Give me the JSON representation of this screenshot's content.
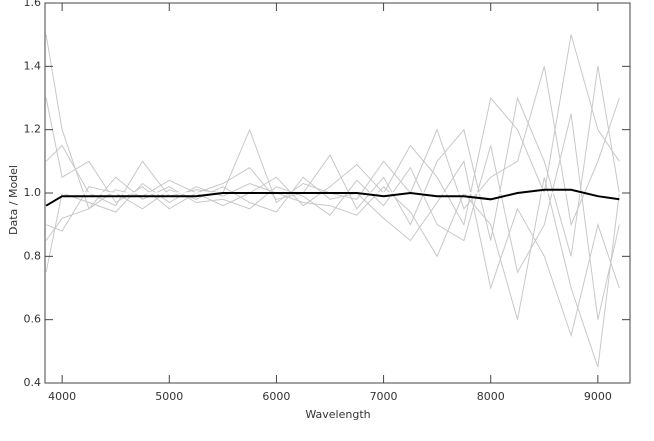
{
  "chart_data": {
    "type": "line",
    "xlabel": "Wavelength",
    "ylabel": "Data / Model",
    "x": [
      3850,
      4000,
      4250,
      4500,
      4750,
      5000,
      5250,
      5500,
      5750,
      6000,
      6250,
      6500,
      6750,
      7000,
      7250,
      7500,
      7750,
      8000,
      8250,
      8500,
      8750,
      9000,
      9200
    ],
    "series": [
      {
        "color": "#c8c8c8",
        "values": [
          1.3,
          1.05,
          1.1,
          0.97,
          1.02,
          0.95,
          1.0,
          1.03,
          1.08,
          0.98,
          1.0,
          1.12,
          0.95,
          1.05,
          0.9,
          1.1,
          1.2,
          0.85,
          1.3,
          1.1,
          0.8,
          1.4,
          1.0
        ]
      },
      {
        "color": "#c8c8c8",
        "values": [
          0.85,
          0.92,
          0.95,
          1.05,
          0.98,
          1.02,
          0.97,
          0.98,
          0.95,
          1.02,
          0.99,
          0.93,
          1.04,
          0.96,
          1.08,
          0.9,
          0.85,
          1.15,
          0.75,
          0.9,
          1.25,
          0.6,
          0.9
        ]
      },
      {
        "color": "#c8c8c8",
        "values": [
          1.1,
          1.15,
          1.0,
          0.96,
          1.1,
          0.99,
          1.01,
          1.0,
          1.2,
          0.97,
          1.03,
          1.0,
          0.98,
          1.1,
          1.0,
          1.2,
          0.95,
          1.05,
          1.1,
          1.4,
          0.9,
          1.1,
          1.3
        ]
      },
      {
        "color": "#c8c8c8",
        "values": [
          0.9,
          0.88,
          1.02,
          1.0,
          0.95,
          1.01,
          0.98,
          1.02,
          0.97,
          0.94,
          1.05,
          0.98,
          1.0,
          0.92,
          0.85,
          0.97,
          1.1,
          0.7,
          0.95,
          0.8,
          0.55,
          0.9,
          0.7
        ]
      },
      {
        "color": "#c8c8c8",
        "values": [
          1.5,
          1.2,
          0.95,
          1.01,
          0.99,
          1.04,
          1.0,
          0.96,
          1.0,
          1.05,
          0.96,
          1.02,
          1.09,
          1.0,
          1.15,
          1.05,
          0.9,
          1.3,
          1.2,
          1.0,
          1.5,
          1.2,
          1.1
        ]
      },
      {
        "color": "#c8c8c8",
        "values": [
          0.75,
          1.0,
          0.97,
          0.94,
          1.03,
          0.97,
          1.02,
          0.99,
          1.03,
          1.0,
          0.97,
          0.96,
          0.93,
          1.02,
          0.94,
          0.8,
          1.0,
          0.9,
          0.6,
          1.05,
          0.7,
          0.45,
          1.0
        ]
      },
      {
        "color": "#000000",
        "values": [
          0.96,
          0.99,
          0.99,
          0.99,
          0.99,
          0.99,
          0.99,
          1.0,
          1.0,
          1.0,
          1.0,
          1.0,
          1.0,
          0.99,
          1.0,
          0.99,
          0.99,
          0.98,
          1.0,
          1.01,
          1.01,
          0.99,
          0.98
        ]
      }
    ],
    "reference_line": 1,
    "reference_color": "#ffffff",
    "xlim": [
      3840,
      9300
    ],
    "xticks": [
      4000,
      5000,
      6000,
      7000,
      8000,
      9000
    ],
    "ylim": [
      0.4,
      1.6
    ],
    "yticks": [
      0.4,
      0.6,
      0.8,
      {
        "value": 1,
        "label": "1.0"
      },
      1.2,
      1.4,
      1.6
    ]
  }
}
